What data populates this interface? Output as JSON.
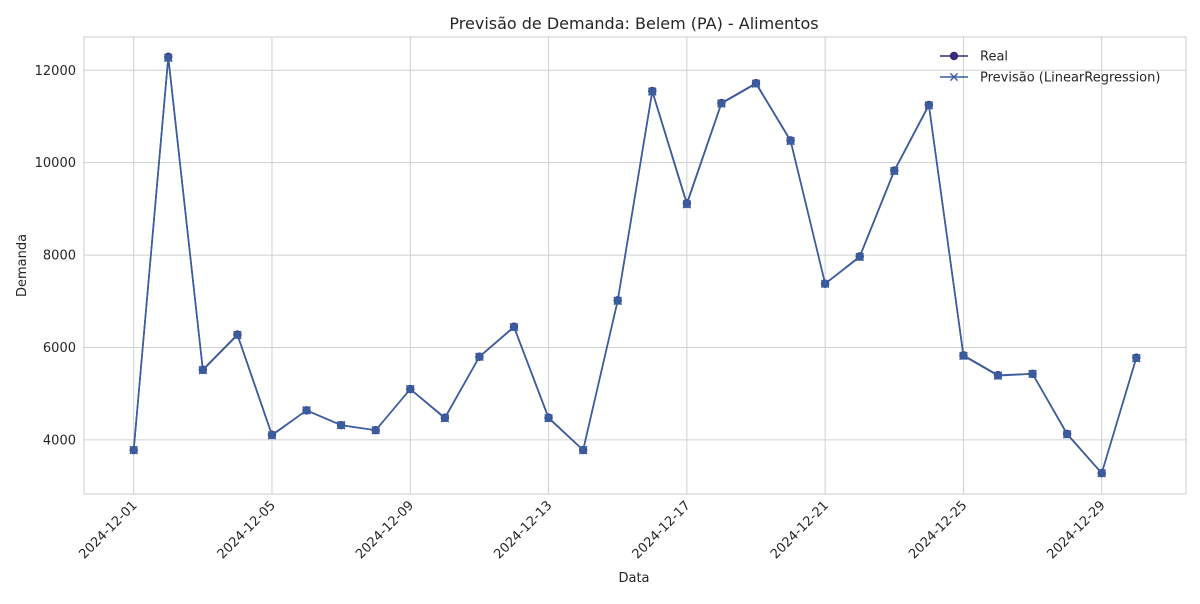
{
  "chart_data": {
    "type": "line",
    "title": "Previsão de Demanda: Belem (PA) - Alimentos",
    "xlabel": "Data",
    "ylabel": "Demanda",
    "x": [
      "2024-12-01",
      "2024-12-02",
      "2024-12-03",
      "2024-12-04",
      "2024-12-05",
      "2024-12-06",
      "2024-12-07",
      "2024-12-08",
      "2024-12-09",
      "2024-12-10",
      "2024-12-11",
      "2024-12-12",
      "2024-12-13",
      "2024-12-14",
      "2024-12-15",
      "2024-12-16",
      "2024-12-17",
      "2024-12-18",
      "2024-12-19",
      "2024-12-20",
      "2024-12-21",
      "2024-12-22",
      "2024-12-23",
      "2024-12-24",
      "2024-12-25",
      "2024-12-26",
      "2024-12-27",
      "2024-12-28",
      "2024-12-29",
      "2024-12-30"
    ],
    "x_ticks": [
      "2024-12-01",
      "2024-12-05",
      "2024-12-09",
      "2024-12-13",
      "2024-12-17",
      "2024-12-21",
      "2024-12-25",
      "2024-12-29"
    ],
    "y_ticks": [
      4000,
      6000,
      8000,
      10000,
      12000
    ],
    "ylim": [
      2830,
      12720
    ],
    "xlim": [
      "2024-11-29T13:30",
      "2024-12-31T10:30"
    ],
    "grid": true,
    "legend_position": "top-right",
    "series": [
      {
        "name": "Real",
        "marker": "circle",
        "color": "#3b2a78",
        "values": [
          3780,
          12290,
          5520,
          6280,
          4110,
          4640,
          4320,
          4210,
          5100,
          4480,
          5800,
          6450,
          4480,
          3780,
          7020,
          11550,
          9120,
          11290,
          11720,
          10480,
          7380,
          7970,
          9830,
          11250,
          5830,
          5400,
          5430,
          4130,
          3280,
          5780
        ]
      },
      {
        "name": "Previsão (LinearRegression)",
        "marker": "x",
        "color": "#3a5fa0",
        "values": [
          3780,
          12270,
          5510,
          6270,
          4100,
          4640,
          4320,
          4210,
          5100,
          4470,
          5800,
          6440,
          4470,
          3780,
          7010,
          11540,
          9100,
          11280,
          11710,
          10470,
          7380,
          7960,
          9820,
          11240,
          5820,
          5390,
          5430,
          4120,
          3280,
          5770
        ]
      }
    ]
  }
}
